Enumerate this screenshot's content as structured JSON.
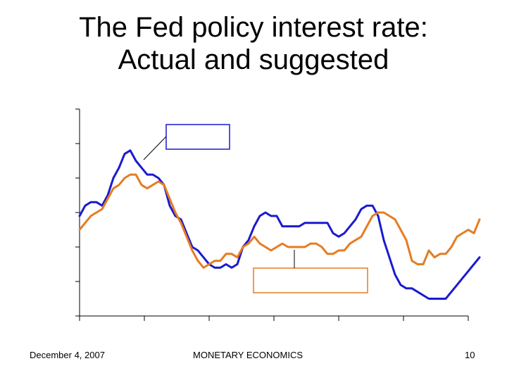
{
  "slide": {
    "title_line1": "The Fed policy interest rate:",
    "title_line2": "Actual and suggested",
    "footer_date": "December 4, 2007",
    "footer_center": "MONETARY ECONOMICS",
    "footer_page": "10"
  },
  "colors": {
    "actual": "#1a1ad0",
    "suggested": "#e67c22",
    "axis": "#000000",
    "callout_actual_border": "#1a1ad0",
    "callout_suggested_border": "#e67c22"
  },
  "chart_data": {
    "type": "line",
    "title": "",
    "xlabel": "",
    "ylabel": "",
    "x_tick_count": 7,
    "y_tick_count": 7,
    "xlim": [
      0,
      62
    ],
    "ylim": [
      0,
      6
    ],
    "tick_labels_x": [],
    "tick_labels_y": [],
    "series": [
      {
        "name": "actual",
        "label": "",
        "values": [
          2.9,
          3.2,
          3.3,
          3.3,
          3.2,
          3.5,
          4.0,
          4.3,
          4.7,
          4.8,
          4.5,
          4.3,
          4.1,
          4.1,
          4.0,
          3.8,
          3.2,
          2.9,
          2.8,
          2.4,
          2.0,
          1.9,
          1.7,
          1.5,
          1.4,
          1.4,
          1.5,
          1.4,
          1.5,
          2.0,
          2.2,
          2.6,
          2.9,
          3.0,
          2.9,
          2.9,
          2.6,
          2.6,
          2.6,
          2.6,
          2.7,
          2.7,
          2.7,
          2.7,
          2.7,
          2.4,
          2.3,
          2.4,
          2.6,
          2.8,
          3.1,
          3.2,
          3.2,
          2.9,
          2.2,
          1.7,
          1.2,
          0.9,
          0.8,
          0.8,
          0.7,
          0.6,
          0.5,
          0.5,
          0.5,
          0.5,
          0.7,
          0.9,
          1.1,
          1.3,
          1.5,
          1.7
        ]
      },
      {
        "name": "suggested",
        "label": "",
        "values": [
          2.5,
          2.7,
          2.9,
          3.0,
          3.1,
          3.4,
          3.7,
          3.8,
          4.0,
          4.1,
          4.1,
          3.8,
          3.7,
          3.8,
          3.9,
          3.8,
          3.4,
          3.0,
          2.7,
          2.3,
          1.9,
          1.6,
          1.4,
          1.5,
          1.6,
          1.6,
          1.8,
          1.8,
          1.7,
          2.0,
          2.1,
          2.3,
          2.1,
          2.0,
          1.9,
          2.0,
          2.1,
          2.0,
          2.0,
          2.0,
          2.0,
          2.1,
          2.1,
          2.0,
          1.8,
          1.8,
          1.9,
          1.9,
          2.1,
          2.2,
          2.3,
          2.6,
          2.9,
          3.0,
          3.0,
          2.9,
          2.8,
          2.5,
          2.2,
          1.6,
          1.5,
          1.5,
          1.9,
          1.7,
          1.8,
          1.8,
          2.0,
          2.3,
          2.4,
          2.5,
          2.4,
          2.8
        ]
      }
    ],
    "callouts": [
      {
        "series": "actual",
        "text": ""
      },
      {
        "series": "suggested",
        "text": ""
      }
    ]
  }
}
